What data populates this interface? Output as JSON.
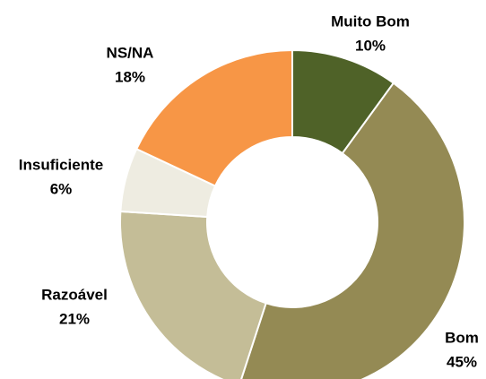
{
  "chart_data": {
    "type": "donut",
    "categories": [
      "Muito Bom",
      "Bom",
      "Razoável",
      "Insuficiente",
      "NS/NA"
    ],
    "values": [
      10,
      45,
      21,
      6,
      18
    ],
    "value_labels": [
      "10%",
      "45%",
      "21%",
      "6%",
      "18%"
    ],
    "colors": [
      "#4f6228",
      "#948a54",
      "#c4bd97",
      "#eeece1",
      "#f79646"
    ]
  }
}
